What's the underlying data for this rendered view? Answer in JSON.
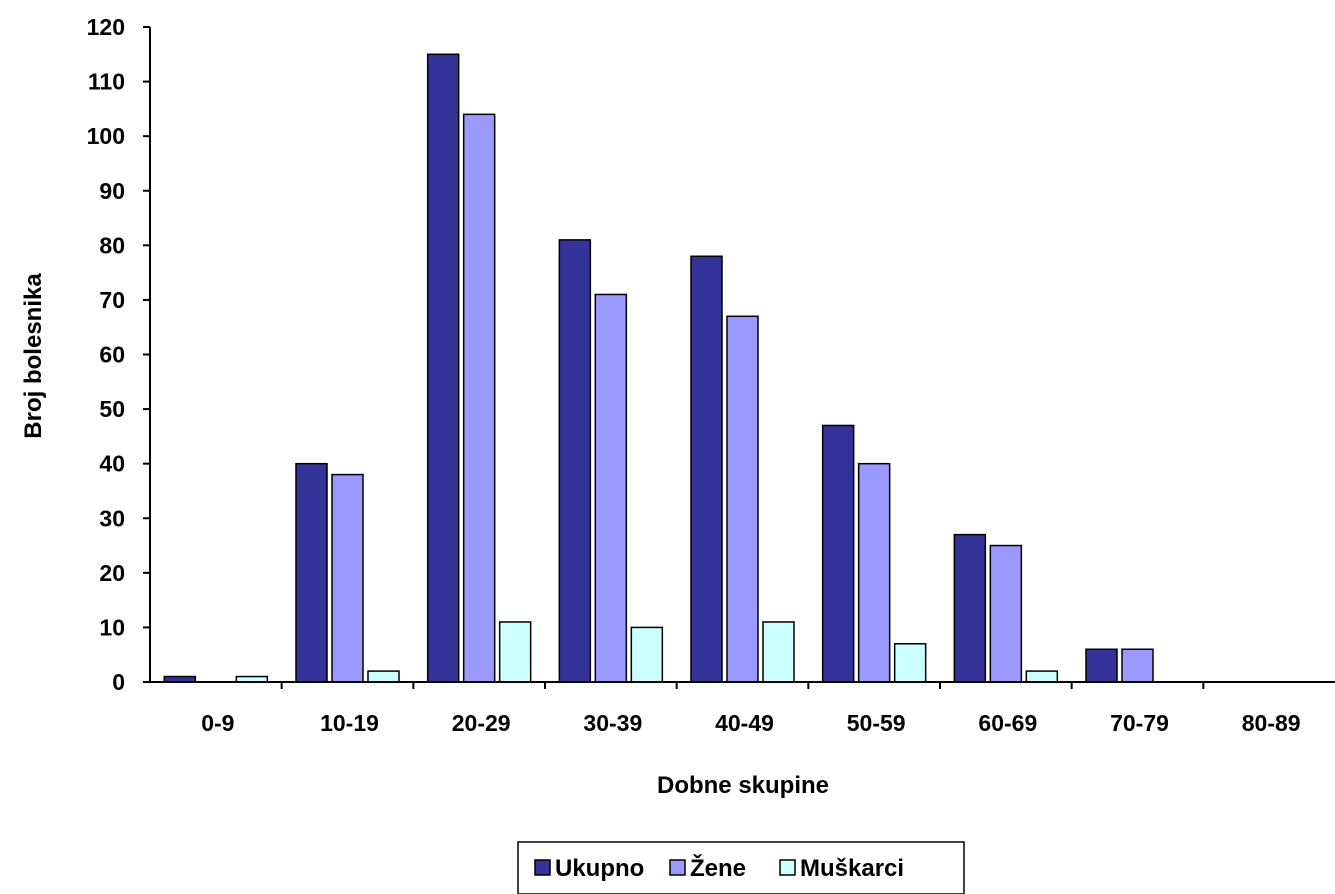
{
  "chart_data": {
    "type": "bar",
    "title": "",
    "xlabel": "Dobne skupine",
    "ylabel": "Broj bolesnika",
    "ylim": [
      0,
      120
    ],
    "yticks": [
      0,
      10,
      20,
      30,
      40,
      50,
      60,
      70,
      80,
      90,
      100,
      110,
      120
    ],
    "categories": [
      "0-9",
      "10-19",
      "20-29",
      "30-39",
      "40-49",
      "50-59",
      "60-69",
      "70-79",
      "80-89"
    ],
    "series": [
      {
        "name": "Ukupno",
        "color": "#333399",
        "values": [
          1,
          40,
          115,
          81,
          78,
          47,
          27,
          6,
          0
        ]
      },
      {
        "name": "Žene",
        "color": "#9999ff",
        "values": [
          0,
          38,
          104,
          71,
          67,
          40,
          25,
          6,
          0
        ]
      },
      {
        "name": "Muškarci",
        "color": "#ccffff",
        "values": [
          1,
          2,
          11,
          10,
          11,
          7,
          2,
          0,
          0
        ]
      }
    ],
    "grid": false,
    "legend_position": "bottom"
  }
}
